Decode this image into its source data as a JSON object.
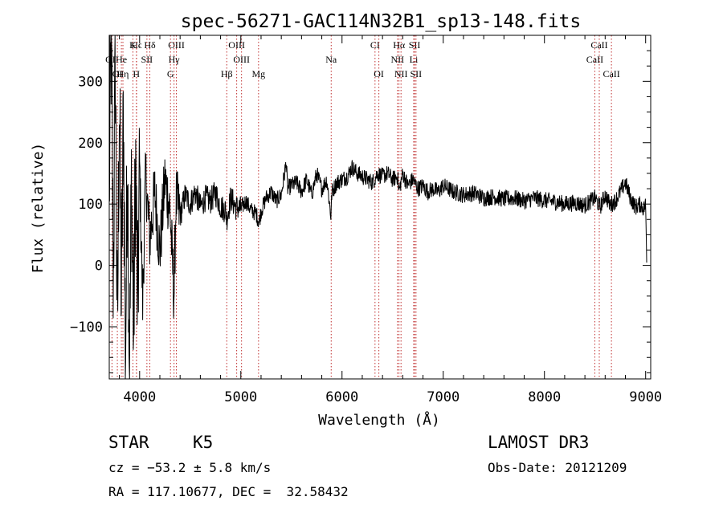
{
  "chart_data": {
    "type": "line",
    "title": "spec-56271-GAC114N32B1_sp13-148.fits",
    "xlabel": "Wavelength (Å)",
    "ylabel": "Flux (relative)",
    "xlim": [
      3700,
      9050
    ],
    "ylim": [
      -185,
      375
    ],
    "xticks": [
      4000,
      5000,
      6000,
      7000,
      8000,
      9000
    ],
    "xtick_labels": [
      "4000",
      "5000",
      "6000",
      "7000",
      "8000",
      "9000"
    ],
    "yticks": [
      -100,
      0,
      100,
      200,
      300
    ],
    "ytick_labels": [
      "−100",
      "0",
      "100",
      "200",
      "300"
    ],
    "grid": false,
    "series": [
      {
        "name": "flux",
        "x": [
          3700,
          3720,
          3740,
          3760,
          3780,
          3800,
          3820,
          3840,
          3860,
          3880,
          3900,
          3920,
          3940,
          3960,
          3980,
          4000,
          4030,
          4060,
          4100,
          4150,
          4200,
          4250,
          4300,
          4340,
          4360,
          4400,
          4450,
          4500,
          4550,
          4600,
          4650,
          4700,
          4750,
          4800,
          4850,
          4860,
          4900,
          4950,
          5000,
          5050,
          5100,
          5150,
          5180,
          5200,
          5250,
          5300,
          5350,
          5400,
          5450,
          5460,
          5500,
          5550,
          5600,
          5650,
          5700,
          5750,
          5800,
          5850,
          5890,
          5900,
          5950,
          6000,
          6050,
          6100,
          6150,
          6200,
          6250,
          6300,
          6350,
          6400,
          6450,
          6500,
          6550,
          6563,
          6600,
          6650,
          6700,
          6750,
          6800,
          6850,
          6900,
          6950,
          7000,
          7100,
          7200,
          7300,
          7400,
          7500,
          7600,
          7700,
          7800,
          7900,
          8000,
          8100,
          8200,
          8300,
          8400,
          8500,
          8550,
          8600,
          8650,
          8700,
          8750,
          8800,
          8850,
          8900,
          8950,
          8980,
          9000,
          9010
        ],
        "y": [
          120,
          380,
          -20,
          340,
          -140,
          300,
          -60,
          260,
          -160,
          200,
          -180,
          150,
          -120,
          180,
          -90,
          160,
          -60,
          150,
          40,
          120,
          20,
          140,
          90,
          -50,
          110,
          80,
          115,
          100,
          120,
          95,
          110,
          105,
          118,
          96,
          90,
          75,
          110,
          95,
          92,
          105,
          90,
          85,
          70,
          88,
          110,
          120,
          105,
          115,
          170,
          125,
          130,
          135,
          120,
          140,
          115,
          150,
          125,
          140,
          80,
          120,
          135,
          140,
          145,
          160,
          150,
          145,
          140,
          135,
          150,
          145,
          150,
          140,
          145,
          120,
          150,
          130,
          140,
          125,
          130,
          120,
          125,
          120,
          130,
          120,
          115,
          118,
          110,
          112,
          108,
          110,
          105,
          110,
          106,
          104,
          100,
          102,
          98,
          110,
          95,
          115,
          98,
          105,
          120,
          135,
          110,
          95,
          100,
          92,
          100,
          10
        ],
        "noise": 14
      }
    ],
    "lines": [
      {
        "label": "Hϵ",
        "x": 3970,
        "row": 1
      },
      {
        "label": "K",
        "x": 3934,
        "row": 1
      },
      {
        "label": "Hδ",
        "x": 4101,
        "row": 1
      },
      {
        "label": "OIII",
        "x": 4363,
        "row": 1
      },
      {
        "label": "OIII",
        "x": 4959,
        "row": 1
      },
      {
        "label": "CI",
        "x": 6326,
        "row": 1
      },
      {
        "label": "Hα",
        "x": 6563,
        "row": 1
      },
      {
        "label": "SII",
        "x": 6717,
        "row": 1
      },
      {
        "label": "CaII",
        "x": 8542,
        "row": 1
      },
      {
        "label": "OII",
        "x": 3727,
        "row": 2
      },
      {
        "label": "He",
        "x": 3820,
        "row": 2
      },
      {
        "label": "SII",
        "x": 4072,
        "row": 2
      },
      {
        "label": "Hγ",
        "x": 4340,
        "row": 2
      },
      {
        "label": "OIII",
        "x": 5007,
        "row": 2
      },
      {
        "label": "Na",
        "x": 5893,
        "row": 2
      },
      {
        "label": "NII",
        "x": 6548,
        "row": 2
      },
      {
        "label": "Li",
        "x": 6708,
        "row": 2
      },
      {
        "label": "CaII",
        "x": 8498,
        "row": 2
      },
      {
        "label": "OI",
        "x": 3780,
        "row": 3
      },
      {
        "label": "Hη",
        "x": 3835,
        "row": 3
      },
      {
        "label": "H",
        "x": 3968,
        "row": 3
      },
      {
        "label": "G",
        "x": 4305,
        "row": 3
      },
      {
        "label": "Hβ",
        "x": 4861,
        "row": 3
      },
      {
        "label": "Mg",
        "x": 5175,
        "row": 3
      },
      {
        "label": "OI",
        "x": 6364,
        "row": 3
      },
      {
        "label": "NII",
        "x": 6583,
        "row": 3
      },
      {
        "label": "SII",
        "x": 6731,
        "row": 3
      },
      {
        "label": "CaII",
        "x": 8662,
        "row": 3
      }
    ]
  },
  "info": {
    "class_label": "STAR",
    "subclass": "K5",
    "survey": "LAMOST DR3",
    "cz": "cz = −53.2 ± 5.8 km/s",
    "obs_date": "Obs-Date: 20121209",
    "coords": "RA = 117.10677, DEC =  32.58432"
  }
}
